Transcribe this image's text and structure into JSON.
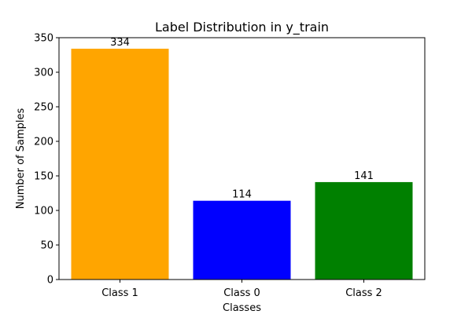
{
  "chart_data": {
    "type": "bar",
    "title": "Label Distribution in y_train",
    "xlabel": "Classes",
    "ylabel": "Number of Samples",
    "categories": [
      "Class 1",
      "Class 0",
      "Class 2"
    ],
    "values": [
      334,
      114,
      141
    ],
    "data_labels": [
      "334",
      "114",
      "141"
    ],
    "colors": [
      "#ffa500",
      "#0000ff",
      "#008000"
    ],
    "ylim": [
      0,
      350
    ],
    "yticks": [
      0,
      50,
      100,
      150,
      200,
      250,
      300,
      350
    ],
    "ytick_labels": [
      "0",
      "50",
      "100",
      "150",
      "200",
      "250",
      "300",
      "350"
    ],
    "grid": false,
    "legend": "none"
  }
}
